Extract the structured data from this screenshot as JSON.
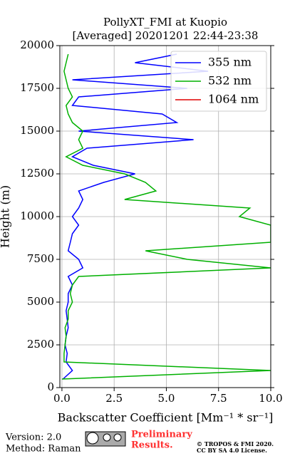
{
  "chart_data": {
    "type": "profile",
    "title": [
      "PollyXT_FMI at Kuopio",
      "[Averaged] 20201201 22:44-23:38"
    ],
    "x_label": "Backscatter Coefficient [Mm⁻¹ * sr⁻¹]",
    "y_label": "Height (m)",
    "y": [
      500,
      1000,
      1500,
      2000,
      2500,
      3000,
      3500,
      4000,
      4500,
      5000,
      5500,
      6000,
      6500,
      7000,
      7500,
      8000,
      8500,
      9000,
      9500,
      10000,
      10500,
      11000,
      11500,
      12000,
      12500,
      13000,
      13500,
      14000,
      14500,
      15000,
      15500,
      16000,
      16500,
      17000,
      17500,
      18000,
      18500,
      19000,
      19500
    ],
    "series": [
      {
        "name": "355 nm",
        "color": "#0000ff",
        "values": [
          0.05,
          0.5,
          0.2,
          0.25,
          0.15,
          0.2,
          0.3,
          0.25,
          0.2,
          0.3,
          0.3,
          0.5,
          0.3,
          1.0,
          0.8,
          0.3,
          0.4,
          0.5,
          0.8,
          0.5,
          0.8,
          1.0,
          0.8,
          2.0,
          3.5,
          1.5,
          0.5,
          1.2,
          6.3,
          0.8,
          5.5,
          4.8,
          0.5,
          0.8,
          6.0,
          0.5,
          7.0,
          3.5,
          5.5
        ]
      },
      {
        "name": "532 nm",
        "color": "#00b000",
        "values": [
          0.0,
          10.0,
          0.1,
          0.1,
          0.15,
          0.2,
          0.15,
          0.3,
          0.3,
          0.5,
          0.4,
          0.5,
          0.8,
          10.0,
          6.0,
          4.0,
          10.0,
          10.0,
          10.0,
          8.5,
          9.0,
          3.0,
          4.5,
          4.0,
          3.0,
          1.0,
          0.2,
          1.0,
          0.8,
          1.0,
          0.5,
          0.3,
          0.2,
          0.5,
          0.3,
          0.2,
          0.1,
          0.2,
          0.3
        ]
      },
      {
        "name": "1064 nm",
        "color": "#e00000",
        "values": [
          null,
          null,
          null,
          null,
          null,
          null,
          null,
          null,
          null,
          null,
          null,
          null,
          null,
          null,
          null,
          null,
          null,
          null,
          null,
          null,
          null,
          null,
          null,
          null,
          null,
          null,
          null,
          null,
          null,
          null,
          null,
          null,
          null,
          null,
          null,
          null,
          null,
          null,
          null
        ]
      }
    ],
    "xlim": [
      -0.1,
      10
    ],
    "xticks": [
      {
        "value": 0,
        "label": "0.0"
      },
      2.5,
      {
        "value": 5,
        "label": "5.0"
      },
      {
        "value": 7.5,
        "label": "7.5"
      },
      {
        "value": 10,
        "label": "10.0"
      }
    ],
    "ylim": [
      0,
      20000
    ],
    "yticks": [
      0,
      2500,
      5000,
      7500,
      10000,
      12500,
      15000,
      17500,
      20000
    ],
    "grid": true,
    "legend": "upper right"
  },
  "footer": {
    "version": "Version: 2.0",
    "method": "Method: Raman",
    "status": [
      "Preliminary",
      "Results."
    ],
    "copyright": [
      "© TROPOS & FMI 2020.",
      "CC BY SA 4.0 License."
    ]
  }
}
